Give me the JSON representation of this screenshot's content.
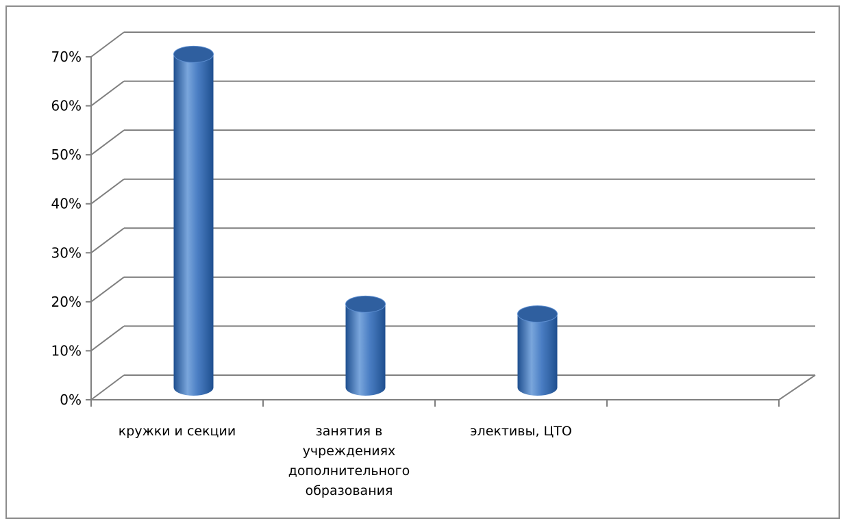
{
  "chart_data": {
    "type": "bar",
    "style": "3d-cylinder",
    "categories": [
      [
        "кружки и секции"
      ],
      [
        "занятия в",
        "учреждениях",
        "дополнительного",
        "образования"
      ],
      [
        "элективы, ЦТО"
      ],
      [
        ""
      ]
    ],
    "values": [
      0.68,
      0.17,
      0.15,
      null
    ],
    "yticks": [
      "0%",
      "10%",
      "20%",
      "30%",
      "40%",
      "50%",
      "60%",
      "70%"
    ],
    "ylim": [
      0,
      0.7
    ],
    "grid": true,
    "legend": "none",
    "title": "",
    "xlabel": "",
    "ylabel": ""
  },
  "colors": {
    "bar_dark": "#1f4f8f",
    "bar_mid": "#4b7fc4",
    "bar_light": "#7aa6dc",
    "bar_top": "#2f5f9f",
    "grid": "#7f7f7f",
    "frame": "#8c8c8c"
  }
}
